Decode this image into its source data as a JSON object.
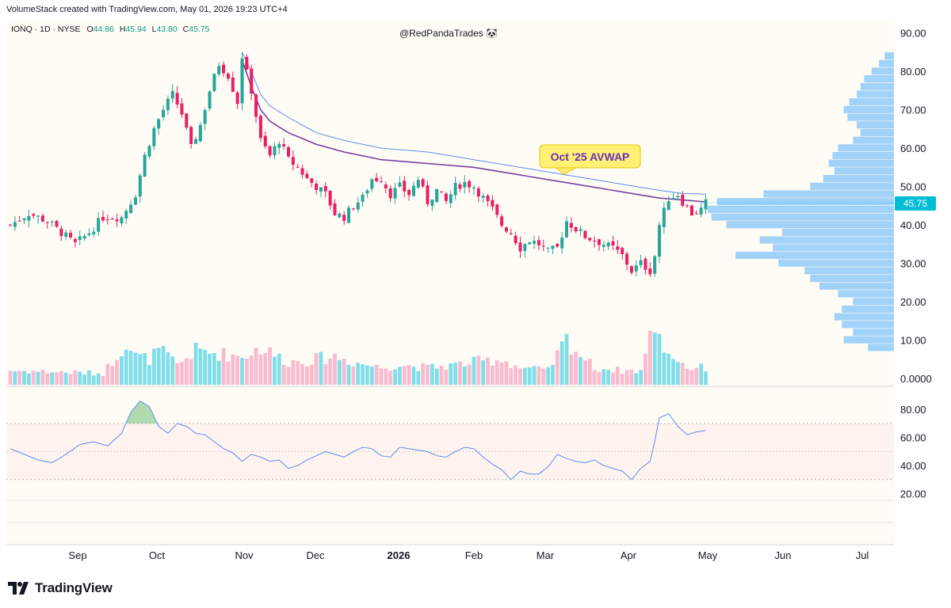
{
  "header": {
    "text": "VolumeStack created with TradingView.com, May 01, 2026 19:23 UTC+4"
  },
  "legend": {
    "symbol": "IONQ · 1D · NYSE",
    "o_label": "O",
    "o": "44.86",
    "h_label": "H",
    "h": "45.94",
    "l_label": "L",
    "l": "43.80",
    "c_label": "C",
    "c": "45.75"
  },
  "watermark": "@RedPandaTrades 🐼",
  "annotation": "Oct '25 AVWAP",
  "brand": "TradingView",
  "colors": {
    "bull": "#26a69a",
    "bear": "#e91e63",
    "bull_vol": "#80deea",
    "bear_vol": "#f8bbd0",
    "avwap": "#7b3fa0",
    "ma": "#5b8def",
    "profile": "#90caf9",
    "rsi": "#5b8def",
    "price_tag": "#00bcd4",
    "annotation_bg": "#fff176"
  },
  "chart_data": {
    "type": "candlestick",
    "symbol": "IONQ",
    "timeframe": "1D",
    "last_price": "45.75",
    "ylim": [
      0,
      92
    ],
    "y_ticks": [
      "90.00",
      "80.00",
      "70.00",
      "60.00",
      "50.00",
      "40.00",
      "30.00",
      "20.00",
      "10.00",
      "0.0000"
    ],
    "x_ticks": [
      {
        "label": "Sep",
        "bold": false
      },
      {
        "label": "Oct",
        "bold": false
      },
      {
        "label": "Nov",
        "bold": false
      },
      {
        "label": "Dec",
        "bold": false
      },
      {
        "label": "2026",
        "bold": true
      },
      {
        "label": "Feb",
        "bold": false
      },
      {
        "label": "Mar",
        "bold": false
      },
      {
        "label": "Apr",
        "bold": false
      },
      {
        "label": "May",
        "bold": false
      },
      {
        "label": "Jun",
        "bold": false
      },
      {
        "label": "Jul",
        "bold": false
      }
    ],
    "price_path": [
      [
        0,
        40
      ],
      [
        4,
        43
      ],
      [
        8,
        41
      ],
      [
        12,
        37
      ],
      [
        14,
        35
      ],
      [
        17,
        38
      ],
      [
        20,
        42
      ],
      [
        24,
        42
      ],
      [
        27,
        48
      ],
      [
        29,
        58
      ],
      [
        31,
        65
      ],
      [
        33,
        70
      ],
      [
        35,
        74
      ],
      [
        37,
        69
      ],
      [
        39,
        60
      ],
      [
        41,
        66
      ],
      [
        43,
        75
      ],
      [
        45,
        82
      ],
      [
        47,
        79
      ],
      [
        49,
        72
      ],
      [
        50,
        84
      ],
      [
        52,
        75
      ],
      [
        54,
        62
      ],
      [
        56,
        58
      ],
      [
        58,
        62
      ],
      [
        60,
        57
      ],
      [
        62,
        55
      ],
      [
        64,
        52
      ],
      [
        66,
        50
      ],
      [
        68,
        48
      ],
      [
        70,
        43
      ],
      [
        72,
        42
      ],
      [
        74,
        45
      ],
      [
        76,
        47
      ],
      [
        78,
        52
      ],
      [
        80,
        52
      ],
      [
        82,
        48
      ],
      [
        84,
        50
      ],
      [
        86,
        48
      ],
      [
        88,
        52
      ],
      [
        90,
        46
      ],
      [
        92,
        49
      ],
      [
        94,
        46
      ],
      [
        96,
        50
      ],
      [
        98,
        51
      ],
      [
        100,
        50
      ],
      [
        102,
        47
      ],
      [
        104,
        44
      ],
      [
        106,
        40
      ],
      [
        108,
        38
      ],
      [
        110,
        34
      ],
      [
        112,
        36
      ],
      [
        114,
        35
      ],
      [
        116,
        33
      ],
      [
        118,
        34
      ],
      [
        120,
        41
      ],
      [
        122,
        39
      ],
      [
        124,
        37
      ],
      [
        126,
        36
      ],
      [
        128,
        35
      ],
      [
        130,
        34
      ],
      [
        132,
        32
      ],
      [
        134,
        28
      ],
      [
        136,
        30
      ],
      [
        138,
        28
      ],
      [
        139,
        32
      ],
      [
        140,
        40
      ],
      [
        142,
        47
      ],
      [
        144,
        48
      ],
      [
        145,
        46
      ],
      [
        147,
        43
      ],
      [
        149,
        44
      ],
      [
        150,
        45.75
      ]
    ],
    "volume_path": [
      [
        0,
        5
      ],
      [
        20,
        4
      ],
      [
        25,
        15
      ],
      [
        27,
        10
      ],
      [
        30,
        9
      ],
      [
        32,
        12
      ],
      [
        34,
        10
      ],
      [
        36,
        7
      ],
      [
        40,
        12
      ],
      [
        45,
        11
      ],
      [
        50,
        10
      ],
      [
        54,
        13
      ],
      [
        60,
        8
      ],
      [
        66,
        9
      ],
      [
        70,
        10
      ],
      [
        74,
        8
      ],
      [
        80,
        6
      ],
      [
        84,
        7
      ],
      [
        90,
        6
      ],
      [
        96,
        7
      ],
      [
        100,
        8
      ],
      [
        106,
        9
      ],
      [
        110,
        6
      ],
      [
        116,
        5
      ],
      [
        120,
        16
      ],
      [
        122,
        12
      ],
      [
        126,
        6
      ],
      [
        132,
        5
      ],
      [
        136,
        5
      ],
      [
        139,
        22
      ],
      [
        140,
        16
      ],
      [
        142,
        11
      ],
      [
        144,
        9
      ],
      [
        146,
        6
      ],
      [
        150,
        6
      ]
    ],
    "avwap_path": [
      [
        50,
        83
      ],
      [
        52,
        76
      ],
      [
        54,
        70
      ],
      [
        56,
        67
      ],
      [
        60,
        64
      ],
      [
        66,
        61
      ],
      [
        72,
        59
      ],
      [
        80,
        57
      ],
      [
        90,
        56
      ],
      [
        100,
        55
      ],
      [
        110,
        53
      ],
      [
        120,
        51
      ],
      [
        130,
        49
      ],
      [
        140,
        47
      ],
      [
        145,
        46.5
      ],
      [
        150,
        46
      ]
    ],
    "ma_path": [
      [
        50,
        85
      ],
      [
        52,
        80
      ],
      [
        54,
        74
      ],
      [
        56,
        71
      ],
      [
        60,
        68
      ],
      [
        66,
        64
      ],
      [
        72,
        62
      ],
      [
        80,
        60
      ],
      [
        90,
        59
      ],
      [
        100,
        57
      ],
      [
        110,
        55
      ],
      [
        120,
        53
      ],
      [
        130,
        51
      ],
      [
        140,
        49
      ],
      [
        145,
        48.2
      ],
      [
        150,
        48
      ]
    ],
    "volume_profile": [
      {
        "price": 84,
        "vol": 0.05
      },
      {
        "price": 82,
        "vol": 0.08
      },
      {
        "price": 80,
        "vol": 0.12
      },
      {
        "price": 78,
        "vol": 0.16
      },
      {
        "price": 76,
        "vol": 0.18
      },
      {
        "price": 74,
        "vol": 0.2
      },
      {
        "price": 72,
        "vol": 0.24
      },
      {
        "price": 70,
        "vol": 0.27
      },
      {
        "price": 68,
        "vol": 0.25
      },
      {
        "price": 66,
        "vol": 0.2
      },
      {
        "price": 64,
        "vol": 0.18
      },
      {
        "price": 62,
        "vol": 0.22
      },
      {
        "price": 60,
        "vol": 0.3
      },
      {
        "price": 58,
        "vol": 0.33
      },
      {
        "price": 56,
        "vol": 0.35
      },
      {
        "price": 54,
        "vol": 0.32
      },
      {
        "price": 52,
        "vol": 0.38
      },
      {
        "price": 50,
        "vol": 0.45
      },
      {
        "price": 48,
        "vol": 0.7
      },
      {
        "price": 46,
        "vol": 0.95
      },
      {
        "price": 44,
        "vol": 1.0
      },
      {
        "price": 42,
        "vol": 0.98
      },
      {
        "price": 40,
        "vol": 0.9
      },
      {
        "price": 38,
        "vol": 0.6
      },
      {
        "price": 36,
        "vol": 0.72
      },
      {
        "price": 34,
        "vol": 0.65
      },
      {
        "price": 32,
        "vol": 0.85
      },
      {
        "price": 30,
        "vol": 0.62
      },
      {
        "price": 28,
        "vol": 0.48
      },
      {
        "price": 26,
        "vol": 0.45
      },
      {
        "price": 24,
        "vol": 0.4
      },
      {
        "price": 22,
        "vol": 0.3
      },
      {
        "price": 20,
        "vol": 0.22
      },
      {
        "price": 18,
        "vol": 0.28
      },
      {
        "price": 16,
        "vol": 0.32
      },
      {
        "price": 14,
        "vol": 0.28
      },
      {
        "price": 12,
        "vol": 0.22
      },
      {
        "price": 10,
        "vol": 0.27
      },
      {
        "price": 8,
        "vol": 0.14
      }
    ],
    "rsi": {
      "y_ticks": [
        "80.00",
        "60.00",
        "40.00",
        "20.00"
      ],
      "ylim": [
        18,
        92
      ],
      "overbought": 70,
      "oversold": 30,
      "path": [
        [
          0,
          52
        ],
        [
          3,
          48
        ],
        [
          6,
          44
        ],
        [
          9,
          42
        ],
        [
          12,
          48
        ],
        [
          15,
          55
        ],
        [
          18,
          57
        ],
        [
          21,
          54
        ],
        [
          24,
          63
        ],
        [
          26,
          78
        ],
        [
          28,
          86
        ],
        [
          30,
          82
        ],
        [
          32,
          68
        ],
        [
          34,
          63
        ],
        [
          36,
          70
        ],
        [
          38,
          68
        ],
        [
          40,
          63
        ],
        [
          42,
          62
        ],
        [
          44,
          57
        ],
        [
          46,
          52
        ],
        [
          48,
          49
        ],
        [
          50,
          43
        ],
        [
          52,
          48
        ],
        [
          54,
          46
        ],
        [
          56,
          43
        ],
        [
          58,
          44
        ],
        [
          60,
          38
        ],
        [
          62,
          40
        ],
        [
          64,
          44
        ],
        [
          66,
          47
        ],
        [
          68,
          50
        ],
        [
          70,
          48
        ],
        [
          72,
          46
        ],
        [
          74,
          50
        ],
        [
          76,
          53
        ],
        [
          78,
          52
        ],
        [
          80,
          47
        ],
        [
          82,
          46
        ],
        [
          84,
          53
        ],
        [
          86,
          52
        ],
        [
          88,
          51
        ],
        [
          90,
          50
        ],
        [
          92,
          47
        ],
        [
          94,
          46
        ],
        [
          96,
          50
        ],
        [
          98,
          53
        ],
        [
          100,
          52
        ],
        [
          102,
          46
        ],
        [
          104,
          41
        ],
        [
          106,
          37
        ],
        [
          108,
          30
        ],
        [
          110,
          36
        ],
        [
          112,
          34
        ],
        [
          114,
          34
        ],
        [
          116,
          39
        ],
        [
          118,
          48
        ],
        [
          120,
          45
        ],
        [
          122,
          43
        ],
        [
          124,
          42
        ],
        [
          126,
          44
        ],
        [
          128,
          40
        ],
        [
          130,
          38
        ],
        [
          132,
          36
        ],
        [
          134,
          30
        ],
        [
          136,
          38
        ],
        [
          138,
          43
        ],
        [
          139,
          57
        ],
        [
          140,
          74
        ],
        [
          142,
          77
        ],
        [
          144,
          68
        ],
        [
          146,
          62
        ],
        [
          148,
          64
        ],
        [
          150,
          65
        ]
      ]
    }
  }
}
